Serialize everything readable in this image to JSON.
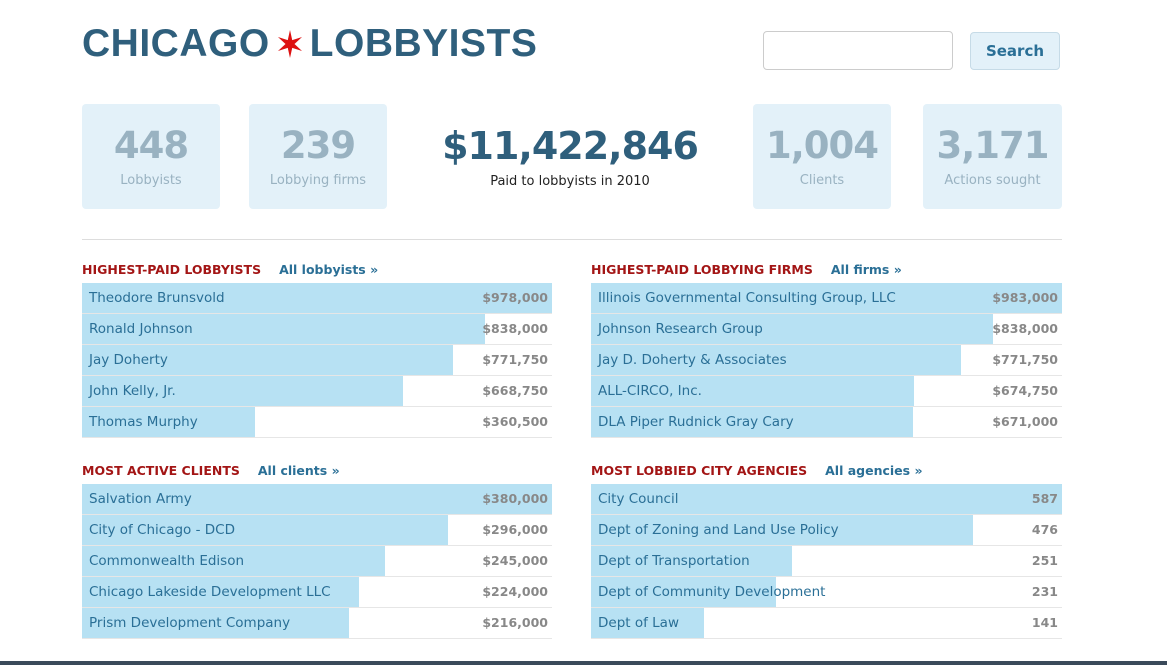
{
  "header": {
    "logo_left": "CHICAGO",
    "logo_right": "LOBBYISTS",
    "search_placeholder": "",
    "search_button": "Search"
  },
  "stats": [
    {
      "value": "448",
      "label": "Lobbyists"
    },
    {
      "value": "239",
      "label": "Lobbying firms"
    },
    {
      "value": "$11,422,846",
      "label": "Paid to lobbyists in 2010"
    },
    {
      "value": "1,004",
      "label": "Clients"
    },
    {
      "value": "3,171",
      "label": "Actions sought"
    }
  ],
  "panels": [
    {
      "title": "HIGHEST-PAID LOBBYISTS",
      "link": "All lobbyists »",
      "rows": [
        {
          "name": "Theodore Brunsvold",
          "value": "$978,000",
          "amount": 978000
        },
        {
          "name": "Ronald Johnson",
          "value": "$838,000",
          "amount": 838000
        },
        {
          "name": "Jay Doherty",
          "value": "$771,750",
          "amount": 771750
        },
        {
          "name": "John Kelly, Jr.",
          "value": "$668,750",
          "amount": 668750
        },
        {
          "name": "Thomas Murphy",
          "value": "$360,500",
          "amount": 360500
        }
      ]
    },
    {
      "title": "HIGHEST-PAID LOBBYING FIRMS",
      "link": "All firms »",
      "rows": [
        {
          "name": "Illinois Governmental Consulting Group, LLC",
          "value": "$983,000",
          "amount": 983000
        },
        {
          "name": "Johnson Research Group",
          "value": "$838,000",
          "amount": 838000
        },
        {
          "name": "Jay D. Doherty & Associates",
          "value": "$771,750",
          "amount": 771750
        },
        {
          "name": "ALL-CIRCO, Inc.",
          "value": "$674,750",
          "amount": 674750
        },
        {
          "name": "DLA Piper Rudnick Gray Cary",
          "value": "$671,000",
          "amount": 671000
        }
      ]
    },
    {
      "title": "MOST ACTIVE CLIENTS",
      "link": "All clients »",
      "rows": [
        {
          "name": "Salvation Army",
          "value": "$380,000",
          "amount": 380000
        },
        {
          "name": "City of Chicago - DCD",
          "value": "$296,000",
          "amount": 296000
        },
        {
          "name": "Commonwealth Edison",
          "value": "$245,000",
          "amount": 245000
        },
        {
          "name": "Chicago Lakeside Development LLC",
          "value": "$224,000",
          "amount": 224000
        },
        {
          "name": "Prism Development Company",
          "value": "$216,000",
          "amount": 216000
        }
      ]
    },
    {
      "title": "MOST LOBBIED CITY AGENCIES",
      "link": "All agencies »",
      "rows": [
        {
          "name": "City Council",
          "value": "587",
          "amount": 587
        },
        {
          "name": "Dept of Zoning and Land Use Policy",
          "value": "476",
          "amount": 476
        },
        {
          "name": "Dept of Transportation",
          "value": "251",
          "amount": 251
        },
        {
          "name": "Dept of Community Development",
          "value": "231",
          "amount": 231
        },
        {
          "name": "Dept of Law",
          "value": "141",
          "amount": 141
        }
      ]
    }
  ]
}
